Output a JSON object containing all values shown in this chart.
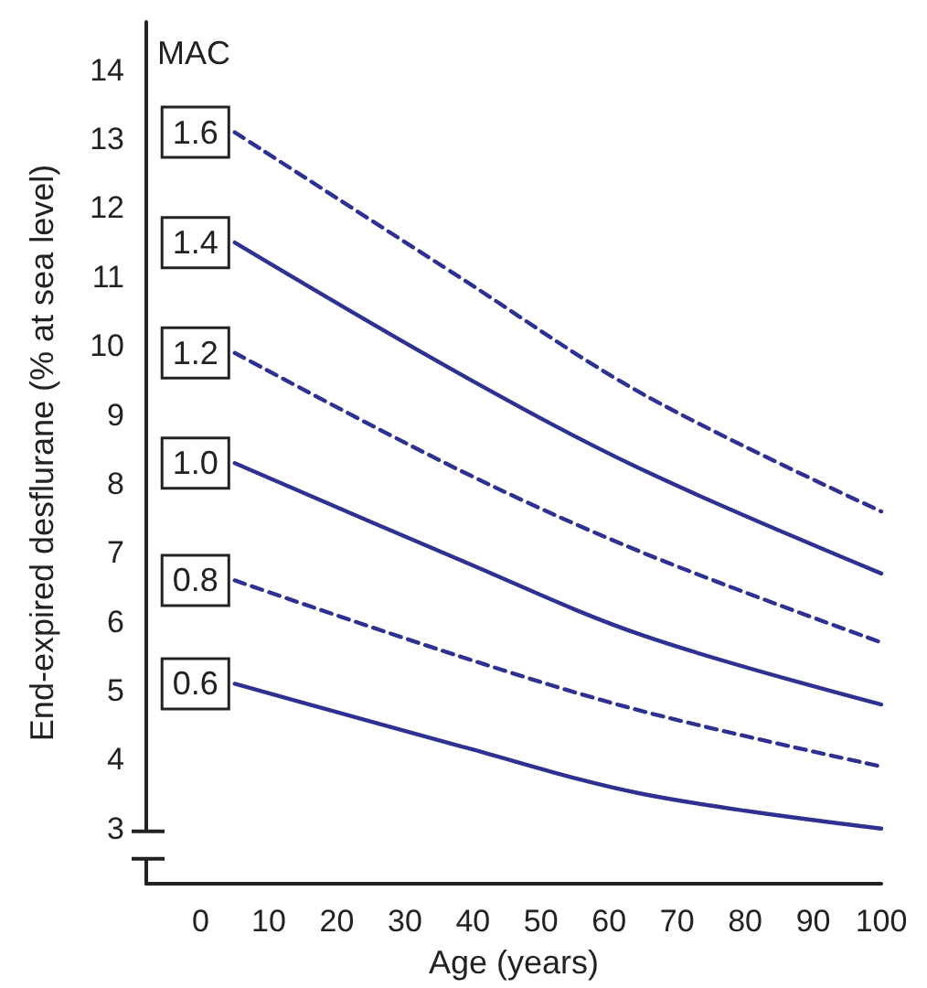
{
  "chart_data": {
    "type": "line",
    "xlabel": "Age (years)",
    "ylabel": "End-expired desflurane (% at sea level)",
    "x": [
      5,
      38,
      65,
      100
    ],
    "series": [
      {
        "name": "1.6",
        "color": "#2e3192",
        "line_style": "dashed",
        "values": [
          13.1,
          11.0,
          9.3,
          7.6
        ]
      },
      {
        "name": "1.4",
        "color": "#2e3192",
        "line_style": "solid",
        "values": [
          11.5,
          9.6,
          8.2,
          6.7
        ]
      },
      {
        "name": "1.2",
        "color": "#2e3192",
        "line_style": "dashed",
        "values": [
          9.9,
          8.2,
          7.0,
          5.7
        ]
      },
      {
        "name": "1.0",
        "color": "#2e3192",
        "line_style": "solid",
        "values": [
          8.3,
          6.9,
          5.8,
          4.8
        ]
      },
      {
        "name": "0.8",
        "color": "#2e3192",
        "line_style": "dashed",
        "values": [
          6.6,
          5.5,
          4.7,
          3.9
        ]
      },
      {
        "name": "0.6",
        "color": "#2e3192",
        "line_style": "solid",
        "values": [
          5.1,
          4.2,
          3.5,
          3.0
        ]
      }
    ],
    "annotations": [
      "MAC"
    ],
    "xlim": [
      -8,
      100
    ],
    "xticks": [
      0,
      10,
      20,
      30,
      40,
      50,
      60,
      70,
      80,
      90,
      100
    ],
    "ylim": [
      2.2,
      14.7
    ],
    "yticks": [
      3,
      4,
      5,
      6,
      7,
      8,
      9,
      10,
      11,
      12,
      13,
      14
    ],
    "grid": false,
    "legend": false,
    "marker": "none"
  }
}
